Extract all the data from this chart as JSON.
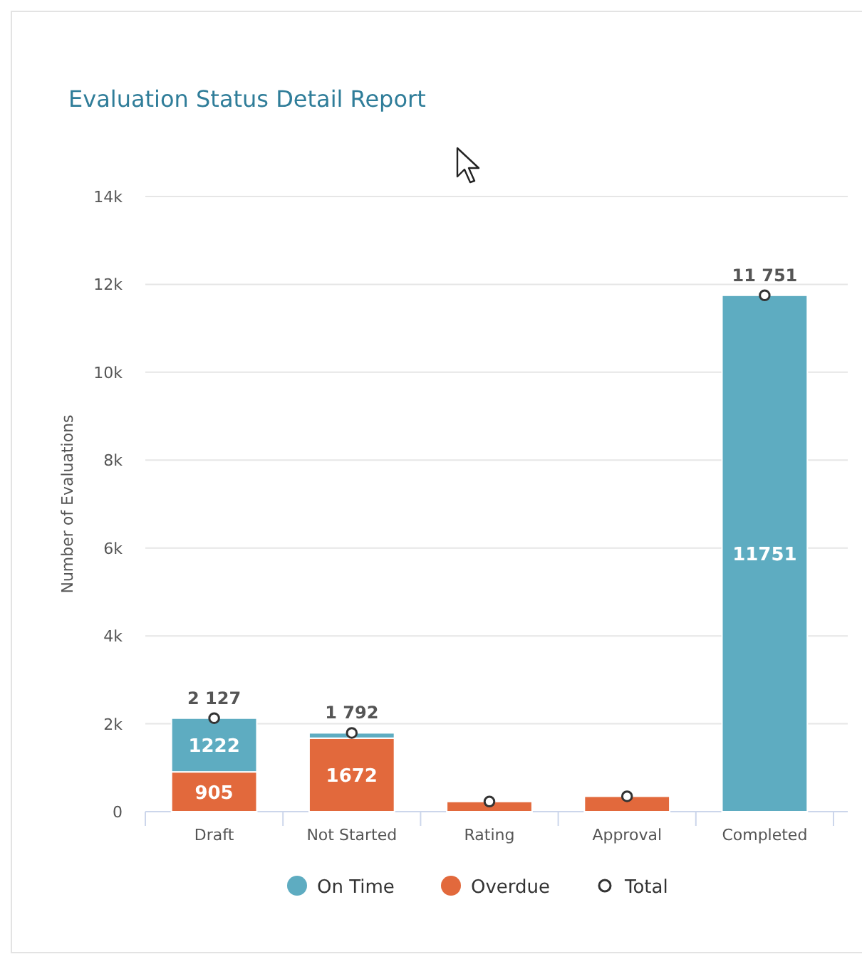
{
  "chart_data": {
    "type": "bar",
    "title": "Evaluation Status Detail Report",
    "ylabel": "Number of Evaluations",
    "categories": [
      "Draft",
      "Not Started",
      "Rating",
      "Approval",
      "Completed"
    ],
    "stacked": true,
    "series": [
      {
        "name": "Overdue",
        "color": "#e2693c",
        "values": [
          905,
          1672,
          230,
          350,
          null
        ],
        "value_labels": [
          "905",
          "1672",
          null,
          null,
          null
        ]
      },
      {
        "name": "On Time",
        "color": "#5eacc1",
        "values": [
          1222,
          120,
          null,
          null,
          11751
        ],
        "value_labels": [
          "1222",
          null,
          null,
          null,
          "11751"
        ]
      },
      {
        "name": "Total",
        "type": "scatter",
        "color": "#ffffff",
        "x": [
          "Draft",
          "Not Started",
          "Rating",
          "Approval",
          "Completed"
        ],
        "values": [
          2127,
          1792,
          230,
          350,
          11751
        ],
        "value_labels": [
          "2 127",
          "1 792",
          null,
          null,
          "11 751"
        ]
      }
    ],
    "ylim": [
      0,
      14000
    ],
    "yticks": [
      {
        "value": 0,
        "label": "0"
      },
      {
        "value": 2000,
        "label": "2k"
      },
      {
        "value": 4000,
        "label": "4k"
      },
      {
        "value": 6000,
        "label": "6k"
      },
      {
        "value": 8000,
        "label": "8k"
      },
      {
        "value": 10000,
        "label": "10k"
      },
      {
        "value": 12000,
        "label": "12k"
      },
      {
        "value": 14000,
        "label": "14k"
      }
    ],
    "grid": "y",
    "legend": "bottom",
    "marker": "circle"
  }
}
